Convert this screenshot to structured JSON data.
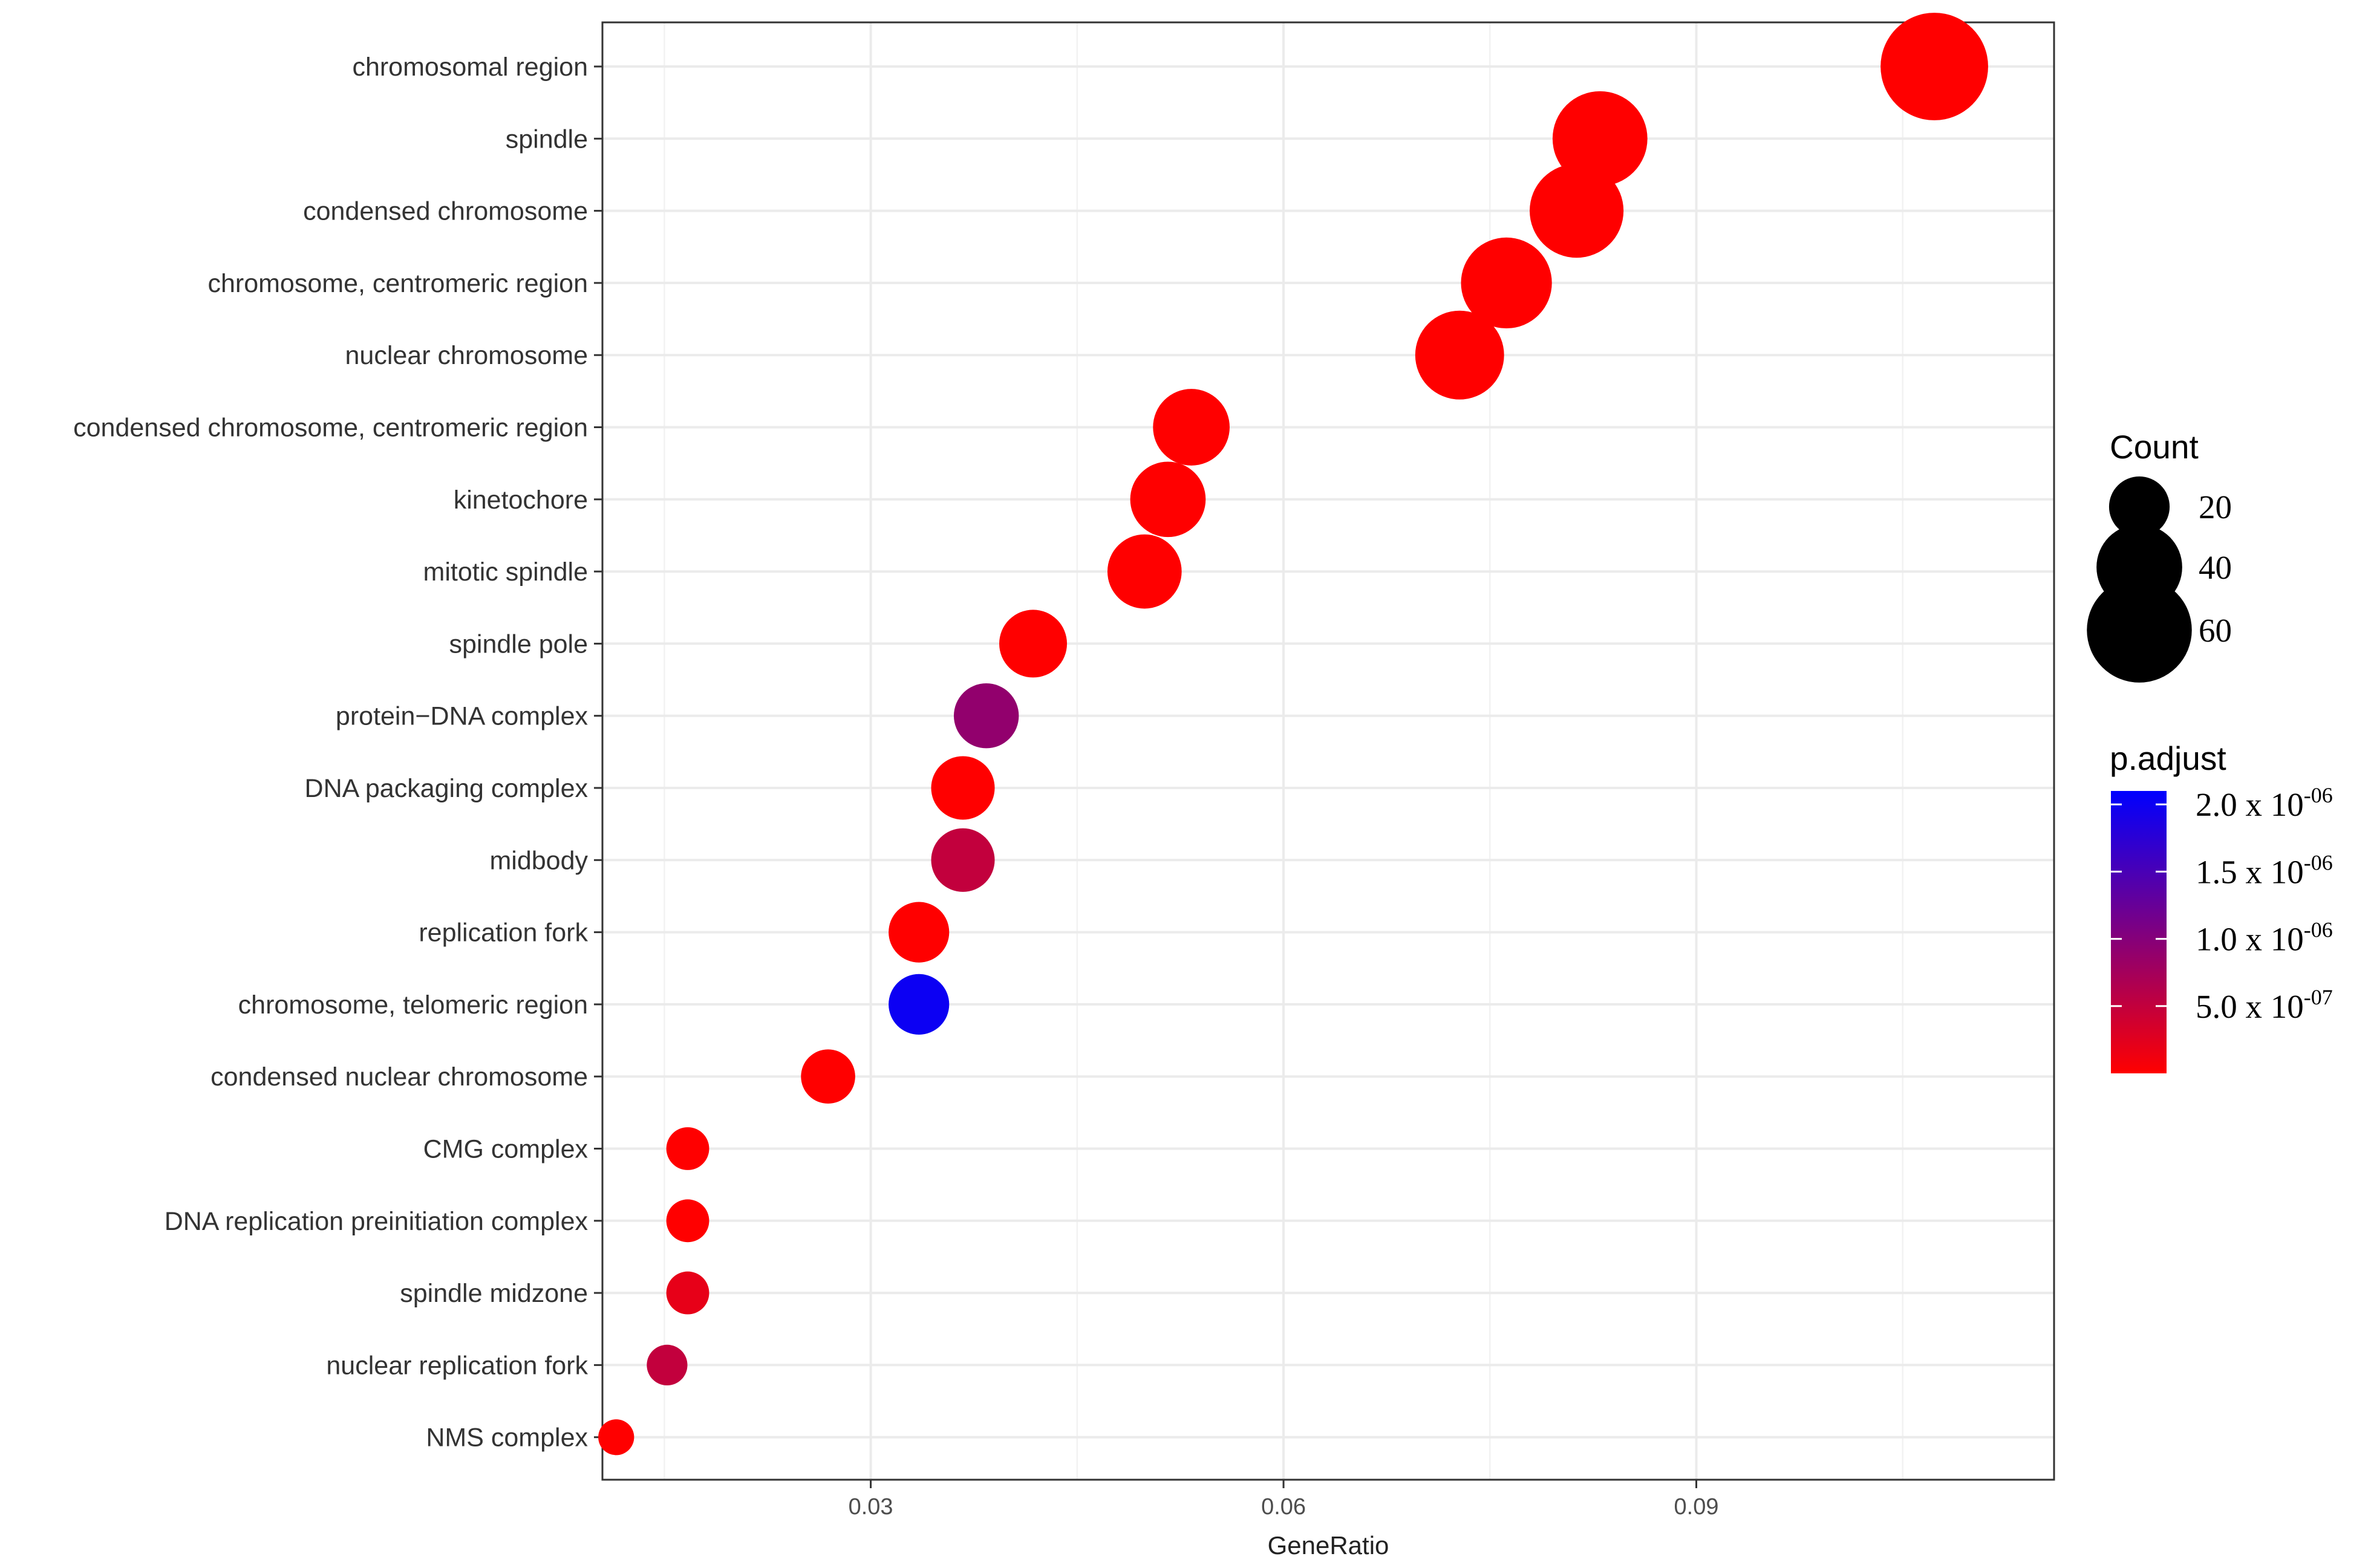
{
  "chart_data": {
    "type": "scatter",
    "xlabel": "GeneRatio",
    "ylabel": "",
    "xlim": [
      0.0105,
      0.116
    ],
    "x_ticks": [
      0.03,
      0.06,
      0.09
    ],
    "x_tick_labels": [
      "0.03",
      "0.06",
      "0.09"
    ],
    "grid": true,
    "legend_placement": "right",
    "categories": [
      "chromosomal region",
      "spindle",
      "condensed chromosome",
      "chromosome, centromeric region",
      "nuclear chromosome",
      "condensed chromosome, centromeric region",
      "kinetochore",
      "mitotic spindle",
      "spindle pole",
      "protein−DNA complex",
      "DNA packaging complex",
      "midbody",
      "replication fork",
      "chromosome, telomeric region",
      "condensed nuclear chromosome",
      "CMG complex",
      "DNA replication preinitiation complex",
      "spindle midzone",
      "nuclear replication fork",
      "NMS complex"
    ],
    "points": [
      {
        "term": "chromosomal region",
        "gene_ratio": 0.1073,
        "count": 63,
        "p_adjust": 1e-10
      },
      {
        "term": "spindle",
        "gene_ratio": 0.083,
        "count": 49,
        "p_adjust": 1e-10
      },
      {
        "term": "condensed chromosome",
        "gene_ratio": 0.0813,
        "count": 48,
        "p_adjust": 1e-10
      },
      {
        "term": "chromosome, centromeric region",
        "gene_ratio": 0.0762,
        "count": 45,
        "p_adjust": 1e-10
      },
      {
        "term": "nuclear chromosome",
        "gene_ratio": 0.0728,
        "count": 43,
        "p_adjust": 1e-10
      },
      {
        "term": "condensed chromosome, centromeric region",
        "gene_ratio": 0.0533,
        "count": 32,
        "p_adjust": 1e-10
      },
      {
        "term": "kinetochore",
        "gene_ratio": 0.0516,
        "count": 31,
        "p_adjust": 1e-10
      },
      {
        "term": "mitotic spindle",
        "gene_ratio": 0.0499,
        "count": 30,
        "p_adjust": 1e-10
      },
      {
        "term": "spindle pole",
        "gene_ratio": 0.0418,
        "count": 25,
        "p_adjust": 1e-10
      },
      {
        "term": "protein−DNA complex",
        "gene_ratio": 0.0384,
        "count": 23,
        "p_adjust": 9e-07
      },
      {
        "term": "DNA packaging complex",
        "gene_ratio": 0.0367,
        "count": 22,
        "p_adjust": 1e-10
      },
      {
        "term": "midbody",
        "gene_ratio": 0.0367,
        "count": 22,
        "p_adjust": 5e-07
      },
      {
        "term": "replication fork",
        "gene_ratio": 0.0335,
        "count": 20,
        "p_adjust": 1e-10
      },
      {
        "term": "chromosome, telomeric region",
        "gene_ratio": 0.0335,
        "count": 20,
        "p_adjust": 2e-06
      },
      {
        "term": "condensed nuclear chromosome",
        "gene_ratio": 0.0269,
        "count": 16,
        "p_adjust": 1e-10
      },
      {
        "term": "CMG complex",
        "gene_ratio": 0.0167,
        "count": 10,
        "p_adjust": 1e-10
      },
      {
        "term": "DNA replication preinitiation complex",
        "gene_ratio": 0.0167,
        "count": 10,
        "p_adjust": 1e-10
      },
      {
        "term": "spindle midzone",
        "gene_ratio": 0.0167,
        "count": 10,
        "p_adjust": 2e-07
      },
      {
        "term": "nuclear replication fork",
        "gene_ratio": 0.0152,
        "count": 9,
        "p_adjust": 5e-07
      },
      {
        "term": "NMS complex",
        "gene_ratio": 0.0115,
        "count": 7,
        "p_adjust": 1e-10
      }
    ],
    "size_legend": {
      "title": "Count",
      "values": [
        20,
        40,
        60
      ],
      "labels": [
        "20",
        "40",
        "60"
      ]
    },
    "color_legend": {
      "title": "p.adjust",
      "range": [
        0,
        2.1e-06
      ],
      "color_low": "#ff0000",
      "color_high": "#0000ff",
      "ticks": [
        {
          "value": 2e-06,
          "mantissa": "2.0 x 10",
          "exponent": "-06"
        },
        {
          "value": 1.5e-06,
          "mantissa": "1.5 x 10",
          "exponent": "-06"
        },
        {
          "value": 1e-06,
          "mantissa": "1.0 x 10",
          "exponent": "-06"
        },
        {
          "value": 5e-07,
          "mantissa": "5.0 x 10",
          "exponent": "-07"
        }
      ]
    }
  }
}
